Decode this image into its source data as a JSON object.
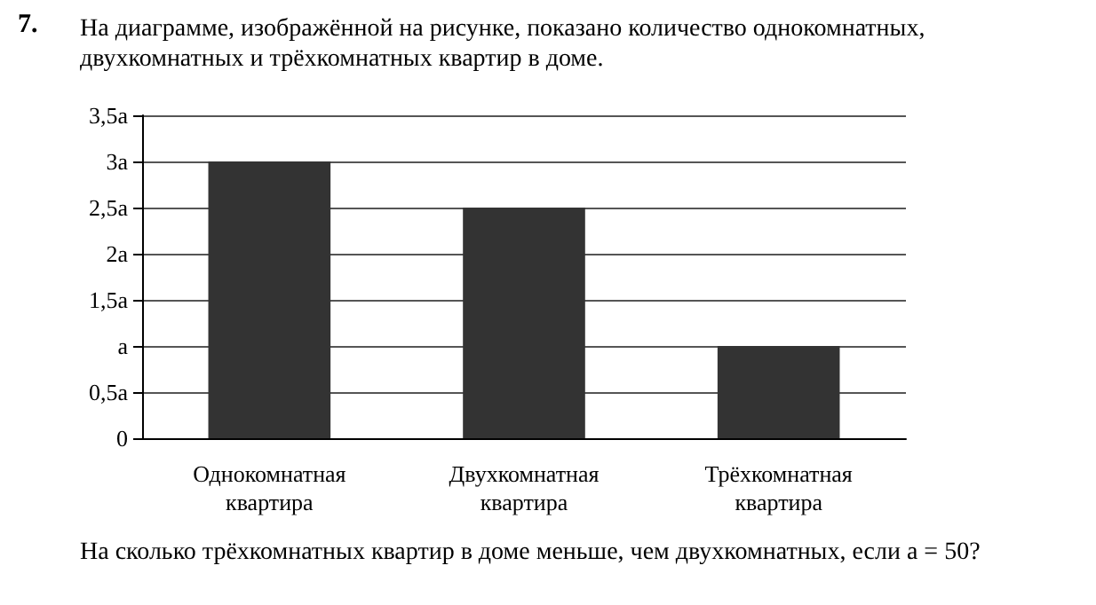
{
  "chart_data": {
    "type": "bar",
    "title": "На диаграмме, изображённой на рисунке, показано количество однокомнатных, двухкомнатных и трёхкомнатных квартир в доме.",
    "annotations": [
      "7.",
      "На сколько трёхкомнатных квартир в доме меньше, чем двухкомнатных, если a = 50?"
    ],
    "categories": [
      "Однокомнатная квартира",
      "Двухкомнатная квартира",
      "Трёхкомнатная квартира"
    ],
    "values": [
      3,
      2.5,
      1
    ],
    "color": "#333333",
    "ylim": [
      0,
      3.5
    ],
    "yticks": [
      {
        "value": 0,
        "label": "0"
      },
      {
        "value": 0.5,
        "label": "0,5a"
      },
      {
        "value": 1,
        "label": "a"
      },
      {
        "value": 1.5,
        "label": "1,5a"
      },
      {
        "value": 2,
        "label": "2a"
      },
      {
        "value": 2.5,
        "label": "2,5a"
      },
      {
        "value": 3,
        "label": "3a"
      },
      {
        "value": 3.5,
        "label": "3,5a"
      }
    ],
    "grid": "y"
  }
}
